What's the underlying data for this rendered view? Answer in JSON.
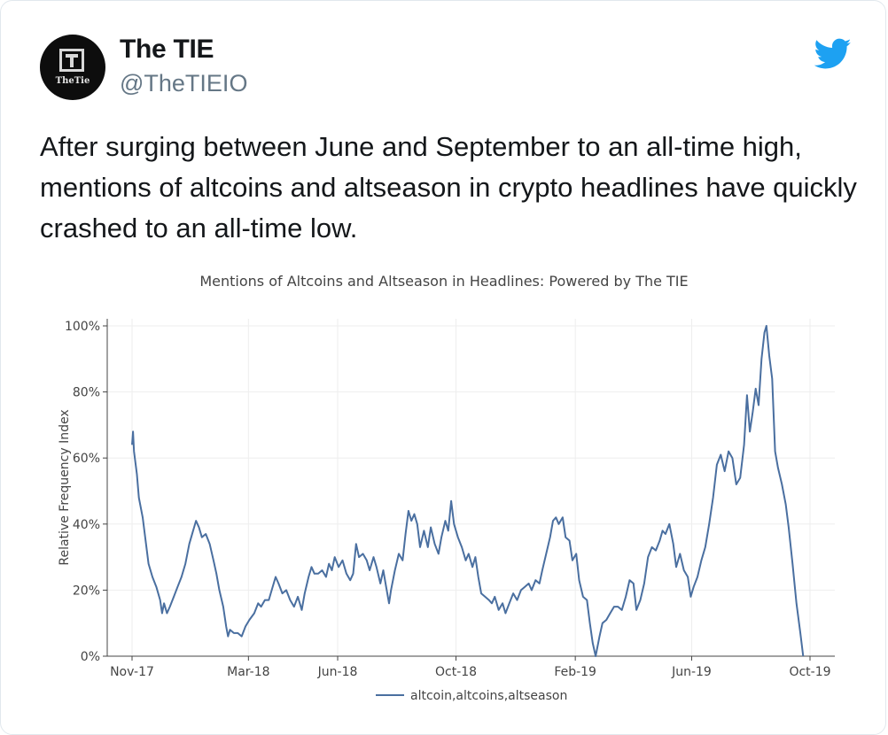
{
  "tweet": {
    "display_name": "The TIE",
    "handle": "@TheTIEIO",
    "avatar_text": "TheTie",
    "text": "After surging between June and September to an all-time high, mentions of altcoins and altseason in crypto headlines have quickly crashed to an all-time low."
  },
  "icons": {
    "brand": "twitter-bird-icon",
    "brand_color": "#1da1f2"
  },
  "chart_data": {
    "type": "line",
    "title": "Mentions of Altcoins and Altseason in Headlines: Powered by The TIE",
    "ylabel": "Relative Frequency Index",
    "xlabel": "",
    "ylim": [
      0,
      100
    ],
    "yticks": [
      0,
      20,
      40,
      60,
      80,
      100
    ],
    "ytick_labels": [
      "0%",
      "20%",
      "40%",
      "60%",
      "80%",
      "100%"
    ],
    "x_start": "2017-11-01",
    "x_end": "2019-10-01",
    "xticks": [
      {
        "date": "2017-11-01",
        "label": "Nov-17"
      },
      {
        "date": "2018-03-01",
        "label": "Mar-18"
      },
      {
        "date": "2018-06-01",
        "label": "Jun-18"
      },
      {
        "date": "2018-10-01",
        "label": "Oct-18"
      },
      {
        "date": "2019-02-01",
        "label": "Feb-19"
      },
      {
        "date": "2019-06-01",
        "label": "Jun-19"
      },
      {
        "date": "2019-10-01",
        "label": "Oct-19"
      }
    ],
    "grid": true,
    "legend_position": "bottom-center",
    "color": "#4a6fa0",
    "series": [
      {
        "name": "altcoin,altcoins,altseason",
        "points": [
          [
            "2017-11-01",
            64
          ],
          [
            "2017-11-02",
            68
          ],
          [
            "2017-11-03",
            62
          ],
          [
            "2017-11-06",
            55
          ],
          [
            "2017-11-08",
            48
          ],
          [
            "2017-11-12",
            42
          ],
          [
            "2017-11-15",
            35
          ],
          [
            "2017-11-18",
            28
          ],
          [
            "2017-11-22",
            24
          ],
          [
            "2017-11-26",
            21
          ],
          [
            "2017-11-30",
            17
          ],
          [
            "2017-12-02",
            13
          ],
          [
            "2017-12-04",
            16
          ],
          [
            "2017-12-07",
            13
          ],
          [
            "2017-12-10",
            15
          ],
          [
            "2017-12-14",
            18
          ],
          [
            "2017-12-18",
            21
          ],
          [
            "2017-12-22",
            24
          ],
          [
            "2017-12-26",
            28
          ],
          [
            "2017-12-30",
            34
          ],
          [
            "2018-01-03",
            38
          ],
          [
            "2018-01-06",
            41
          ],
          [
            "2018-01-09",
            39
          ],
          [
            "2018-01-12",
            36
          ],
          [
            "2018-01-16",
            37
          ],
          [
            "2018-01-20",
            34
          ],
          [
            "2018-01-24",
            29
          ],
          [
            "2018-01-27",
            25
          ],
          [
            "2018-01-30",
            20
          ],
          [
            "2018-02-03",
            15
          ],
          [
            "2018-02-06",
            9
          ],
          [
            "2018-02-08",
            6
          ],
          [
            "2018-02-10",
            8
          ],
          [
            "2018-02-14",
            7
          ],
          [
            "2018-02-18",
            7
          ],
          [
            "2018-02-22",
            6
          ],
          [
            "2018-02-26",
            9
          ],
          [
            "2018-03-02",
            11
          ],
          [
            "2018-03-07",
            13
          ],
          [
            "2018-03-11",
            16
          ],
          [
            "2018-03-14",
            15
          ],
          [
            "2018-03-18",
            17
          ],
          [
            "2018-03-22",
            17
          ],
          [
            "2018-03-25",
            20
          ],
          [
            "2018-03-29",
            24
          ],
          [
            "2018-04-01",
            22
          ],
          [
            "2018-04-05",
            19
          ],
          [
            "2018-04-09",
            20
          ],
          [
            "2018-04-13",
            17
          ],
          [
            "2018-04-17",
            15
          ],
          [
            "2018-04-21",
            18
          ],
          [
            "2018-04-25",
            14
          ],
          [
            "2018-04-28",
            19
          ],
          [
            "2018-05-02",
            24
          ],
          [
            "2018-05-05",
            27
          ],
          [
            "2018-05-08",
            25
          ],
          [
            "2018-05-12",
            25
          ],
          [
            "2018-05-16",
            26
          ],
          [
            "2018-05-20",
            24
          ],
          [
            "2018-05-23",
            28
          ],
          [
            "2018-05-26",
            26
          ],
          [
            "2018-05-29",
            30
          ],
          [
            "2018-06-02",
            27
          ],
          [
            "2018-06-06",
            29
          ],
          [
            "2018-06-10",
            25
          ],
          [
            "2018-06-14",
            23
          ],
          [
            "2018-06-17",
            25
          ],
          [
            "2018-06-20",
            34
          ],
          [
            "2018-06-23",
            30
          ],
          [
            "2018-06-27",
            31
          ],
          [
            "2018-07-01",
            29
          ],
          [
            "2018-07-04",
            26
          ],
          [
            "2018-07-08",
            30
          ],
          [
            "2018-07-11",
            27
          ],
          [
            "2018-07-15",
            22
          ],
          [
            "2018-07-18",
            26
          ],
          [
            "2018-07-21",
            21
          ],
          [
            "2018-07-24",
            16
          ],
          [
            "2018-07-26",
            20
          ],
          [
            "2018-07-30",
            26
          ],
          [
            "2018-08-03",
            31
          ],
          [
            "2018-08-07",
            29
          ],
          [
            "2018-08-10",
            37
          ],
          [
            "2018-08-13",
            44
          ],
          [
            "2018-08-16",
            41
          ],
          [
            "2018-08-19",
            43
          ],
          [
            "2018-08-22",
            40
          ],
          [
            "2018-08-25",
            33
          ],
          [
            "2018-08-29",
            38
          ],
          [
            "2018-09-02",
            33
          ],
          [
            "2018-09-05",
            39
          ],
          [
            "2018-09-09",
            34
          ],
          [
            "2018-09-13",
            31
          ],
          [
            "2018-09-16",
            36
          ],
          [
            "2018-09-20",
            41
          ],
          [
            "2018-09-23",
            38
          ],
          [
            "2018-09-26",
            47
          ],
          [
            "2018-09-29",
            40
          ],
          [
            "2018-10-03",
            36
          ],
          [
            "2018-10-07",
            33
          ],
          [
            "2018-10-11",
            29
          ],
          [
            "2018-10-14",
            31
          ],
          [
            "2018-10-18",
            27
          ],
          [
            "2018-10-21",
            30
          ],
          [
            "2018-10-24",
            24
          ],
          [
            "2018-10-27",
            19
          ],
          [
            "2018-10-31",
            18
          ],
          [
            "2018-11-04",
            17
          ],
          [
            "2018-11-07",
            16
          ],
          [
            "2018-11-10",
            18
          ],
          [
            "2018-11-14",
            14
          ],
          [
            "2018-11-18",
            16
          ],
          [
            "2018-11-21",
            13
          ],
          [
            "2018-11-25",
            16
          ],
          [
            "2018-11-29",
            19
          ],
          [
            "2018-12-03",
            17
          ],
          [
            "2018-12-07",
            20
          ],
          [
            "2018-12-11",
            21
          ],
          [
            "2018-12-15",
            22
          ],
          [
            "2018-12-18",
            20
          ],
          [
            "2018-12-22",
            23
          ],
          [
            "2018-12-26",
            22
          ],
          [
            "2018-12-29",
            26
          ],
          [
            "2019-01-02",
            31
          ],
          [
            "2019-01-06",
            36
          ],
          [
            "2019-01-09",
            41
          ],
          [
            "2019-01-12",
            42
          ],
          [
            "2019-01-15",
            40
          ],
          [
            "2019-01-19",
            42
          ],
          [
            "2019-01-22",
            36
          ],
          [
            "2019-01-26",
            35
          ],
          [
            "2019-01-29",
            29
          ],
          [
            "2019-02-02",
            31
          ],
          [
            "2019-02-05",
            23
          ],
          [
            "2019-02-09",
            18
          ],
          [
            "2019-02-13",
            17
          ],
          [
            "2019-02-16",
            10
          ],
          [
            "2019-02-19",
            4
          ],
          [
            "2019-02-22",
            0
          ],
          [
            "2019-02-26",
            6
          ],
          [
            "2019-03-01",
            10
          ],
          [
            "2019-03-05",
            11
          ],
          [
            "2019-03-09",
            13
          ],
          [
            "2019-03-13",
            15
          ],
          [
            "2019-03-17",
            15
          ],
          [
            "2019-03-21",
            14
          ],
          [
            "2019-03-25",
            18
          ],
          [
            "2019-03-29",
            23
          ],
          [
            "2019-04-02",
            22
          ],
          [
            "2019-04-05",
            14
          ],
          [
            "2019-04-09",
            17
          ],
          [
            "2019-04-13",
            22
          ],
          [
            "2019-04-17",
            30
          ],
          [
            "2019-04-21",
            33
          ],
          [
            "2019-04-25",
            32
          ],
          [
            "2019-04-29",
            35
          ],
          [
            "2019-05-02",
            38
          ],
          [
            "2019-05-05",
            37
          ],
          [
            "2019-05-09",
            40
          ],
          [
            "2019-05-13",
            34
          ],
          [
            "2019-05-16",
            27
          ],
          [
            "2019-05-20",
            31
          ],
          [
            "2019-05-24",
            26
          ],
          [
            "2019-05-28",
            24
          ],
          [
            "2019-05-31",
            18
          ],
          [
            "2019-06-03",
            21
          ],
          [
            "2019-06-07",
            24
          ],
          [
            "2019-06-11",
            29
          ],
          [
            "2019-06-15",
            33
          ],
          [
            "2019-06-19",
            40
          ],
          [
            "2019-06-23",
            48
          ],
          [
            "2019-06-27",
            58
          ],
          [
            "2019-07-01",
            61
          ],
          [
            "2019-07-05",
            56
          ],
          [
            "2019-07-09",
            62
          ],
          [
            "2019-07-13",
            60
          ],
          [
            "2019-07-17",
            52
          ],
          [
            "2019-07-21",
            54
          ],
          [
            "2019-07-25",
            64
          ],
          [
            "2019-07-28",
            79
          ],
          [
            "2019-07-31",
            68
          ],
          [
            "2019-08-03",
            74
          ],
          [
            "2019-08-06",
            81
          ],
          [
            "2019-08-09",
            76
          ],
          [
            "2019-08-12",
            90
          ],
          [
            "2019-08-15",
            98
          ],
          [
            "2019-08-17",
            100
          ],
          [
            "2019-08-20",
            91
          ],
          [
            "2019-08-23",
            84
          ],
          [
            "2019-08-26",
            62
          ],
          [
            "2019-08-29",
            57
          ],
          [
            "2019-09-02",
            52
          ],
          [
            "2019-09-06",
            46
          ],
          [
            "2019-09-09",
            39
          ],
          [
            "2019-09-13",
            28
          ],
          [
            "2019-09-17",
            16
          ],
          [
            "2019-09-21",
            7
          ],
          [
            "2019-09-24",
            0
          ]
        ]
      }
    ]
  }
}
